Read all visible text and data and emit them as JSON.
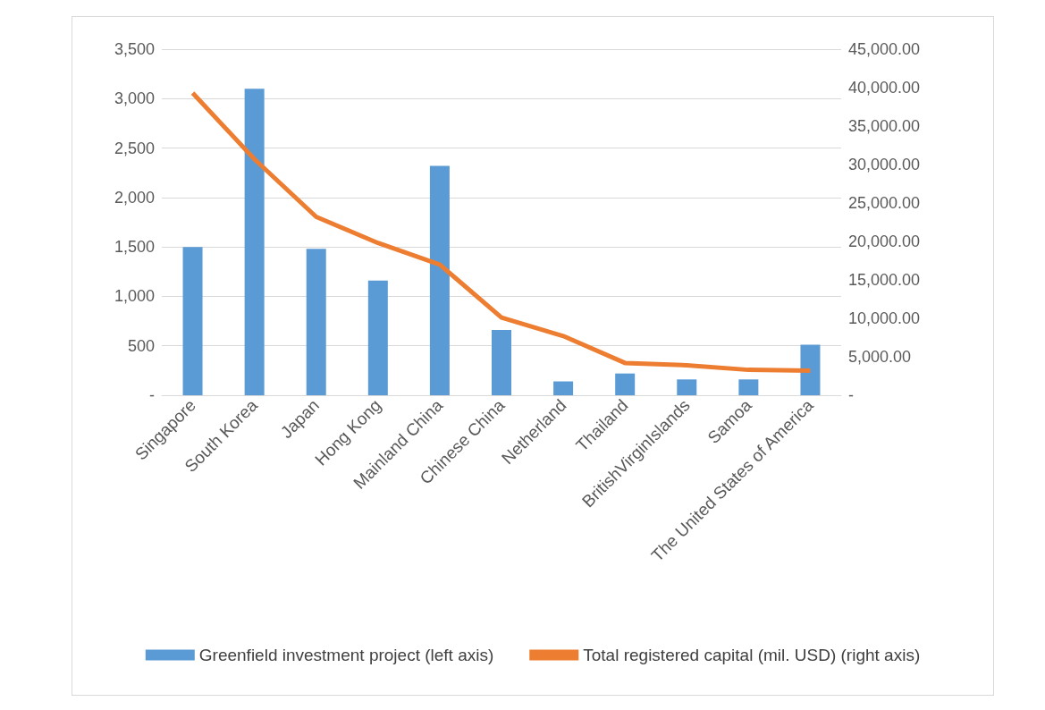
{
  "chart_data": {
    "type": "bar",
    "categories": [
      "Singapore",
      "South Korea",
      "Japan",
      "Hong Kong",
      "Mainland China",
      "Chinese China",
      "Netherland",
      "Thailand",
      "BritishVirginIslands",
      "Samoa",
      "The United States of America"
    ],
    "series": [
      {
        "name": "Greenfield investment project (left axis)",
        "color": "#5b9bd5",
        "values": [
          1500,
          3100,
          1480,
          1160,
          2320,
          660,
          140,
          220,
          160,
          160,
          510
        ]
      },
      {
        "name": "Total registered capital (mil. USD) (right axis)",
        "type": "line",
        "axis": "y2",
        "color": "#ed7d31",
        "values": [
          39300,
          30700,
          23200,
          19800,
          17000,
          10100,
          7700,
          4200,
          3900,
          3300,
          3200
        ]
      }
    ],
    "ylim": [
      0,
      3500
    ],
    "yticks": [
      {
        "value": 0,
        "label": "-"
      },
      500,
      {
        "value": 1000,
        "label": "1,000"
      },
      {
        "value": 1500,
        "label": "1,500"
      },
      {
        "value": 2000,
        "label": "2,000"
      },
      {
        "value": 2500,
        "label": "2,500"
      },
      {
        "value": 3000,
        "label": "3,000"
      },
      {
        "value": 3500,
        "label": "3,500"
      }
    ],
    "y2lim": [
      0,
      45000
    ],
    "y2ticks": [
      {
        "value": 0,
        "label": "-"
      },
      {
        "value": 5000,
        "label": "5,000.00"
      },
      {
        "value": 10000,
        "label": "10,000.00"
      },
      {
        "value": 15000,
        "label": "15,000.00"
      },
      {
        "value": 20000,
        "label": "20,000.00"
      },
      {
        "value": 25000,
        "label": "25,000.00"
      },
      {
        "value": 30000,
        "label": "30,000.00"
      },
      {
        "value": 35000,
        "label": "35,000.00"
      },
      {
        "value": 40000,
        "label": "40,000.00"
      },
      {
        "value": 45000,
        "label": "45,000.00"
      }
    ],
    "grid": "y",
    "legend": "bottom",
    "marker": "none",
    "line_style": "solid"
  }
}
